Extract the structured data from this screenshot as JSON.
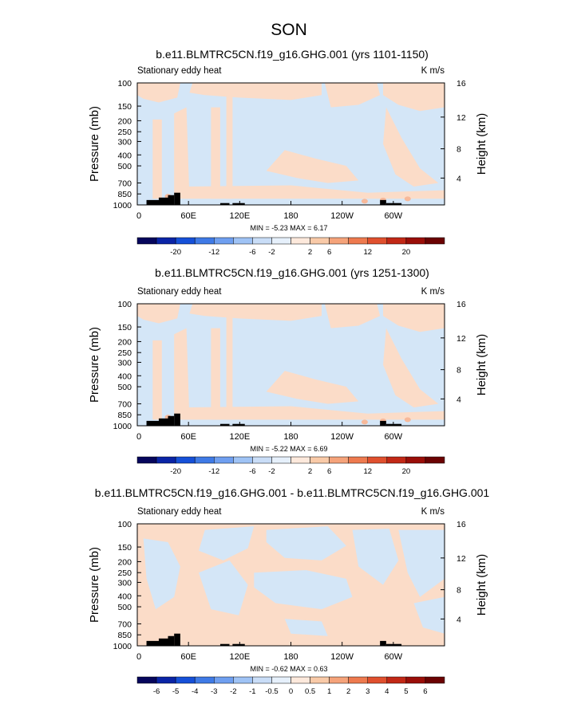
{
  "suptitle": "SON",
  "palette": {
    "light_blue": "#d4e6f7",
    "light_orange": "#fbdcc8",
    "terrain": "#000000",
    "axis": "#000000"
  },
  "chart_data": [
    {
      "type": "heatmap",
      "title": "b.e11.BLMTRC5CN.f19_g16.GHG.001 (yrs 1101-1150)",
      "left_label": "Stationary eddy heat",
      "right_label": "K m/s",
      "xticks": [
        "0",
        "60E",
        "120E",
        "180",
        "120W",
        "60W"
      ],
      "yticks": [
        "100",
        "150",
        "200",
        "250",
        "300",
        "400",
        "500",
        "700",
        "850",
        "1000"
      ],
      "ylabel": "Pressure (mb)",
      "yticks_right": [
        "16",
        "12",
        "8",
        "4"
      ],
      "ylabel_right": "Height (km)",
      "stats": "MIN = -5.23  MAX =  6.17",
      "colorbar_labels": [
        "-20",
        "-12",
        "-6",
        "-2",
        "2",
        "6",
        "12",
        "20"
      ],
      "colorbar_colors": [
        "#06065c",
        "#0a24a6",
        "#1650d8",
        "#3f7ae6",
        "#6f9ff0",
        "#9fc3f5",
        "#c9ddf7",
        "#e6f0fb",
        "#fde9dc",
        "#f9caa8",
        "#f5a37a",
        "#ee7a4f",
        "#e0502e",
        "#c22816",
        "#9a0e08",
        "#6b0202"
      ]
    },
    {
      "type": "heatmap",
      "title": "b.e11.BLMTRC5CN.f19_g16.GHG.001 (yrs 1251-1300)",
      "left_label": "Stationary eddy heat",
      "right_label": "K m/s",
      "xticks": [
        "0",
        "60E",
        "120E",
        "180",
        "120W",
        "60W"
      ],
      "yticks": [
        "100",
        "150",
        "200",
        "250",
        "300",
        "400",
        "500",
        "700",
        "850",
        "1000"
      ],
      "ylabel": "Pressure (mb)",
      "yticks_right": [
        "16",
        "12",
        "8",
        "4"
      ],
      "ylabel_right": "Height (km)",
      "stats": "MIN = -5.22  MAX =  6.69",
      "colorbar_labels": [
        "-20",
        "-12",
        "-6",
        "-2",
        "2",
        "6",
        "12",
        "20"
      ],
      "colorbar_colors": [
        "#06065c",
        "#0a24a6",
        "#1650d8",
        "#3f7ae6",
        "#6f9ff0",
        "#9fc3f5",
        "#c9ddf7",
        "#e6f0fb",
        "#fde9dc",
        "#f9caa8",
        "#f5a37a",
        "#ee7a4f",
        "#e0502e",
        "#c22816",
        "#9a0e08",
        "#6b0202"
      ]
    },
    {
      "type": "heatmap",
      "title": "b.e11.BLMTRC5CN.f19_g16.GHG.001 - b.e11.BLMTRC5CN.f19_g16.GHG.001",
      "left_label": "Stationary eddy heat",
      "right_label": "K m/s",
      "xticks": [
        "0",
        "60E",
        "120E",
        "180",
        "120W",
        "60W"
      ],
      "yticks": [
        "100",
        "150",
        "200",
        "250",
        "300",
        "400",
        "500",
        "700",
        "850",
        "1000"
      ],
      "ylabel": "Pressure (mb)",
      "yticks_right": [
        "16",
        "12",
        "8",
        "4"
      ],
      "ylabel_right": "Height (km)",
      "stats": "MIN = -0.62  MAX =  0.63",
      "colorbar_labels": [
        "-6",
        "-5",
        "-4",
        "-3",
        "-2",
        "-1",
        "-0.5",
        "0",
        "0.5",
        "1",
        "2",
        "3",
        "4",
        "5",
        "6"
      ],
      "colorbar_colors": [
        "#06065c",
        "#0a24a6",
        "#1650d8",
        "#3f7ae6",
        "#6f9ff0",
        "#9fc3f5",
        "#c9ddf7",
        "#e6f0fb",
        "#fde9dc",
        "#f9caa8",
        "#f5a37a",
        "#ee7a4f",
        "#e0502e",
        "#c22816",
        "#9a0e08",
        "#6b0202"
      ]
    }
  ]
}
